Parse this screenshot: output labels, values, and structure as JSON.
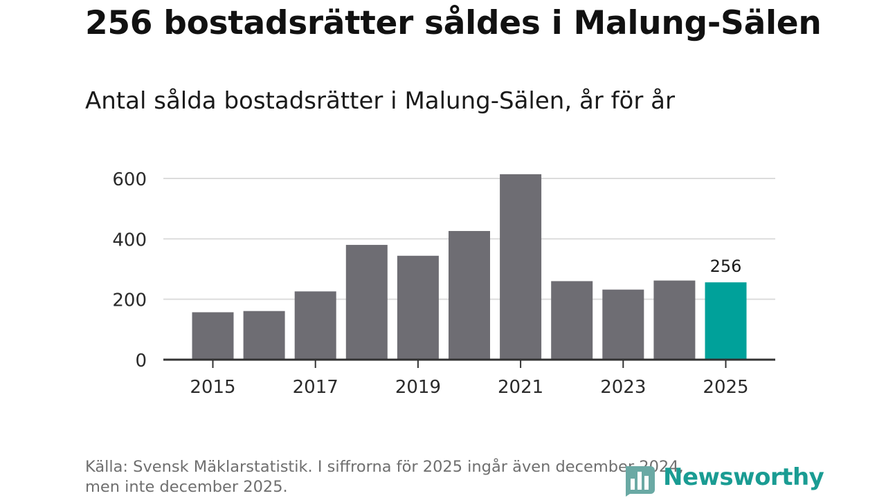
{
  "headline": "256 bostadsrätter såldes i Malung-Sälen",
  "chart_data": {
    "type": "bar",
    "title": "Antal sålda bostadsrätter i Malung-Sälen, år för år",
    "categories": [
      "2015",
      "2016",
      "2017",
      "2018",
      "2019",
      "2020",
      "2021",
      "2022",
      "2023",
      "2024",
      "2025"
    ],
    "values": [
      157,
      161,
      226,
      380,
      344,
      426,
      614,
      260,
      232,
      262,
      256
    ],
    "x_tick_labels": [
      "2015",
      "2017",
      "2019",
      "2021",
      "2023",
      "2025"
    ],
    "y_ticks": [
      0,
      200,
      400,
      600
    ],
    "ylim": [
      0,
      640
    ],
    "xlabel": "",
    "ylabel": "",
    "highlight": {
      "category": "2025",
      "label": "256"
    },
    "colors": {
      "bar": "#6e6d73",
      "highlight": "#00a19a",
      "grid": "#dcdcdc",
      "axis": "#333333"
    }
  },
  "source_note": "Källa: Svensk Mäklarstatistik. I siffrorna för 2025 ingår även december 2024, men inte december 2025.",
  "logo": {
    "text": "Newsworthy",
    "icon": "bar-chart-logo-icon",
    "color": "#1a9c93"
  }
}
